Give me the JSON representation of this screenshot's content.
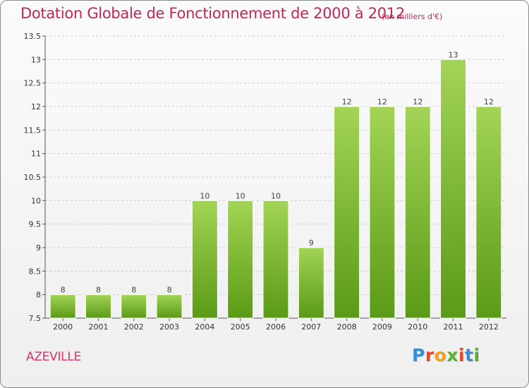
{
  "header": {
    "title": "Dotation Globale de Fonctionnement de 2000 à 2012",
    "unit": "(en milliers d'€)"
  },
  "footer": {
    "commune": "AZEVILLE",
    "logo_text": "Proxiti",
    "logo_colors": [
      "#3a8fd0",
      "#e8471f",
      "#f3a11c",
      "#5bb030",
      "#e8471f",
      "#3a8fd0",
      "#5bb030"
    ]
  },
  "colors": {
    "bar_top": "#a3d456",
    "bar_bottom": "#5a9a16",
    "title": "#c2255c",
    "grid": "#cccccc"
  },
  "chart_data": {
    "type": "bar",
    "title": "Dotation Globale de Fonctionnement de 2000 à 2012",
    "subtitle": "(en milliers d'€)",
    "xlabel": "",
    "ylabel": "",
    "categories": [
      "2000",
      "2001",
      "2002",
      "2003",
      "2004",
      "2005",
      "2006",
      "2007",
      "2008",
      "2009",
      "2010",
      "2011",
      "2012"
    ],
    "values": [
      8,
      8,
      8,
      8,
      10,
      10,
      10,
      9,
      12,
      12,
      12,
      13,
      12
    ],
    "data_labels": [
      "8",
      "8",
      "8",
      "8",
      "10",
      "10",
      "10",
      "9",
      "12",
      "12",
      "12",
      "13",
      "12"
    ],
    "ylim": [
      7.5,
      13.5
    ],
    "yticks": [
      7.5,
      8,
      8.5,
      9,
      9.5,
      10,
      10.5,
      11,
      11.5,
      12,
      12.5,
      13,
      13.5
    ],
    "ytick_labels": [
      "7.5",
      "8",
      "8.5",
      "9",
      "9.5",
      "10",
      "10.5",
      "11",
      "11.5",
      "12",
      "12.5",
      "13",
      "13.5"
    ],
    "grid": "horizontal-dashed",
    "legend": "none"
  }
}
